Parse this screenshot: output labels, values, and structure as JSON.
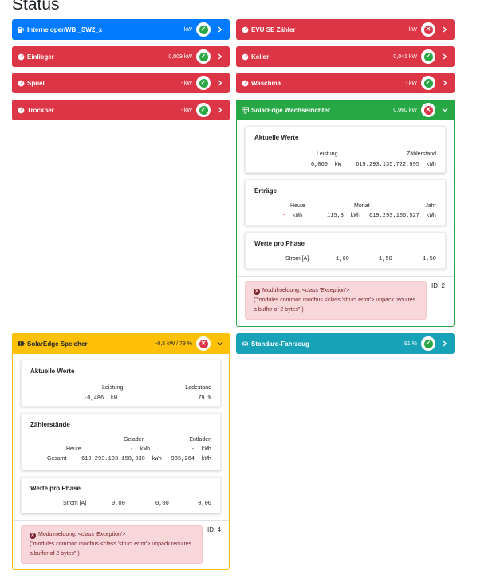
{
  "page": {
    "title": "Status"
  },
  "cards": {
    "openwb": {
      "title": "Interne openWB _SW2_x",
      "value": "- kW",
      "status": "ok"
    },
    "evu": {
      "title": "EVU SE Zähler",
      "value": "- kW",
      "status": "error"
    },
    "einlieger": {
      "title": "Einlieger",
      "value": "0,009 kW",
      "status": "ok"
    },
    "keller": {
      "title": "Keller",
      "value": "0,041 kW",
      "status": "ok"
    },
    "spuel": {
      "title": "Spuel",
      "value": "- kW",
      "status": "ok"
    },
    "waschma": {
      "title": "Waschma",
      "value": "- kW",
      "status": "ok"
    },
    "trockner": {
      "title": "Trockner",
      "value": "- kW",
      "status": "ok"
    },
    "inverter": {
      "title": "SolarEdge Wechselrichter",
      "value": "0,060 kW",
      "status": "error",
      "current": {
        "title": "Aktuelle Werte",
        "power_label": "Leistung",
        "meter_label": "Zählerstand",
        "power": "0,060",
        "power_unit": "kW",
        "meter": "619.293.135.722,995",
        "meter_unit": "kWh"
      },
      "yields": {
        "title": "Erträge",
        "today_label": "Heute",
        "month_label": "Monat",
        "year_label": "Jahr",
        "today": "-",
        "today_unit": "kWh",
        "month": "115,3",
        "month_unit": "kWh",
        "year": "619.293.106.527",
        "year_unit": "kWh"
      },
      "phases": {
        "title": "Werte pro Phase",
        "current_label": "Strom [A]",
        "values": [
          "1,60",
          "1,50",
          "1,50"
        ]
      },
      "message": "Modulmeldung: <class 'Exception'> (\"modules.common.modbus <class 'struct.error'> unpack requires a buffer of 2 bytes\",)",
      "id_label": "ID: 2"
    },
    "storage": {
      "title": "SolarEdge Speicher",
      "value": "-0,5 kW / 79 %",
      "status": "error",
      "current": {
        "title": "Aktuelle Werte",
        "power_label": "Leistung",
        "soc_label": "Ladestand",
        "power": "-0,486",
        "power_unit": "kW",
        "soc": "79",
        "soc_unit": "%"
      },
      "meters": {
        "title": "Zählerstände",
        "charged_label": "Geladen",
        "discharged_label": "Entladen",
        "today_label": "Heute",
        "total_label": "Gesamt",
        "today_charged": "-",
        "today_discharged": "-",
        "total_charged": "619.293.103.158,338",
        "total_discharged": "985,264",
        "unit": "kWh"
      },
      "phases": {
        "title": "Werte pro Phase",
        "current_label": "Strom [A]",
        "values": [
          "0,00",
          "0,00",
          "0,00"
        ]
      },
      "message": "Modulmeldung: <class 'Exception'> (\"modules.common.modbus <class 'struct.error'> unpack requires a buffer of 2 bytes\",)",
      "id_label": "ID: 4"
    },
    "vehicle": {
      "title": "Standard-Fahrzeug",
      "value": "91 %",
      "status": "ok"
    }
  },
  "icons": {
    "ok": "check-icon",
    "error": "close-icon",
    "expand": "chevron-right-icon",
    "collapse": "chevron-down-icon"
  },
  "colors": {
    "blue": "#007bff",
    "red": "#dc3545",
    "green": "#28a745",
    "yellow": "#ffc107",
    "teal": "#17a2b8"
  }
}
